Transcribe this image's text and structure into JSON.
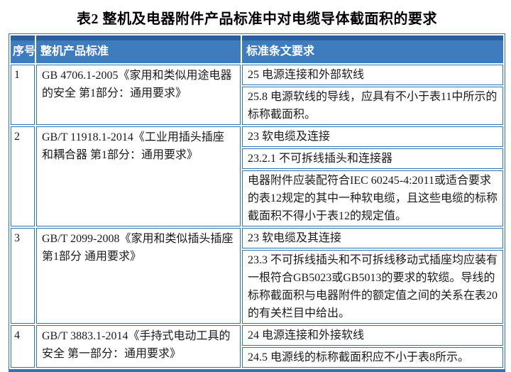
{
  "title": "表2 整机及电器附件产品标准中对电缆导体截面积的要求",
  "table": {
    "headers": [
      "序号",
      "整机产品标准",
      "标准条文要求"
    ],
    "rows": [
      {
        "no": "1",
        "standard": "GB 4706.1-2005《家用和类似用途电器的安全 第1部分：通用要求》",
        "requirements": [
          "25 电源连接和外部软线",
          "25.8 电源软线的导线，应具有不小于表11中所示的标称截面积。"
        ]
      },
      {
        "no": "2",
        "standard": "GB/T 11918.1-2014《工业用插头插座和耦合器 第1部分：通用要求》",
        "requirements": [
          "23 软电缆及连接",
          "23.2.1 不可拆线插头和连接器",
          "电器附件应装配符合IEC 60245-4:2011或适合要求的表12规定的其中一种软电缆，且这些电缆的标称截面积不得小于表12的规定值。"
        ]
      },
      {
        "no": "3",
        "standard": "GB/T 2099-2008《家用和类似插头插座 第1部分 通用要求》",
        "requirements": [
          "23 软电缆及其连接",
          "23.3 不可拆线插头和不可拆线移动式插座均应装有一根符合GB5023或GB5013的要求的软缆。导线的标称截面积与电器附件的额定值之间的关系在表20的有关栏目中给出。"
        ]
      },
      {
        "no": "4",
        "standard": "GB/T 3883.1-2014《手持式电动工具的安全 第一部分：通用要求》",
        "requirements": [
          "24 电源连接和外接软线",
          "24.5 电源线的标称截面积应不小于表8所示。"
        ]
      }
    ]
  },
  "colors": {
    "header_bg": "#3E7CBE",
    "header_top": "#2B5F9C",
    "border": "#2E74B5",
    "header_text": "#FFFFFF",
    "body_text": "#1A1A1A"
  }
}
